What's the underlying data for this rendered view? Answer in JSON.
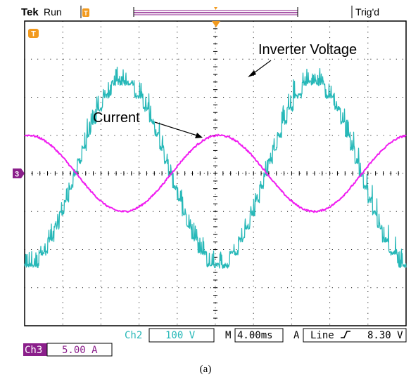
{
  "header": {
    "brand": "Tek",
    "acq_state": "Run",
    "trigger_state": "Trig'd"
  },
  "markers": {
    "trigger_level": "T",
    "ch3_ground": "3",
    "trigger_position": "T"
  },
  "readouts": {
    "ch2_label": "Ch2",
    "ch2_scale": "100 V",
    "timebase_label": "M",
    "timebase": "4.00ms",
    "trigger_mode_label": "A",
    "trigger_source": "Line",
    "trigger_slope": "ʃ",
    "trigger_level": "8.30 V",
    "ch3_label": "Ch3",
    "ch3_scale": "5.00 A"
  },
  "caption": "(a)",
  "colors": {
    "voltage": "#27b8b8",
    "current": "#f01cf0",
    "trigger": "#f29a1e",
    "ch3": "#8b1f8b",
    "graticule": "#000000"
  },
  "chart_data": {
    "type": "line",
    "time_per_div_ms": 4.0,
    "x_divisions": 10,
    "y_divisions": 8,
    "x_range_ms": [
      0,
      40
    ],
    "series": [
      {
        "name": "Inverter Voltage",
        "channel": "Ch2",
        "unit": "V",
        "amplitude_div": 2.4,
        "period_ms": 20,
        "zero_cross_rising_ms": [
          5.3,
          25.3
        ],
        "peak_v": 240,
        "style": "multilevel staircase with switching ripple"
      },
      {
        "name": "Current",
        "channel": "Ch3",
        "unit": "A",
        "amplitude_div": 1.0,
        "period_ms": 20,
        "zero_cross_rising_ms": [
          15.4,
          35.4
        ],
        "peak_a": 5.0
      }
    ],
    "annotations": [
      {
        "text": "Inverter Voltage"
      },
      {
        "text": "Current"
      }
    ]
  }
}
